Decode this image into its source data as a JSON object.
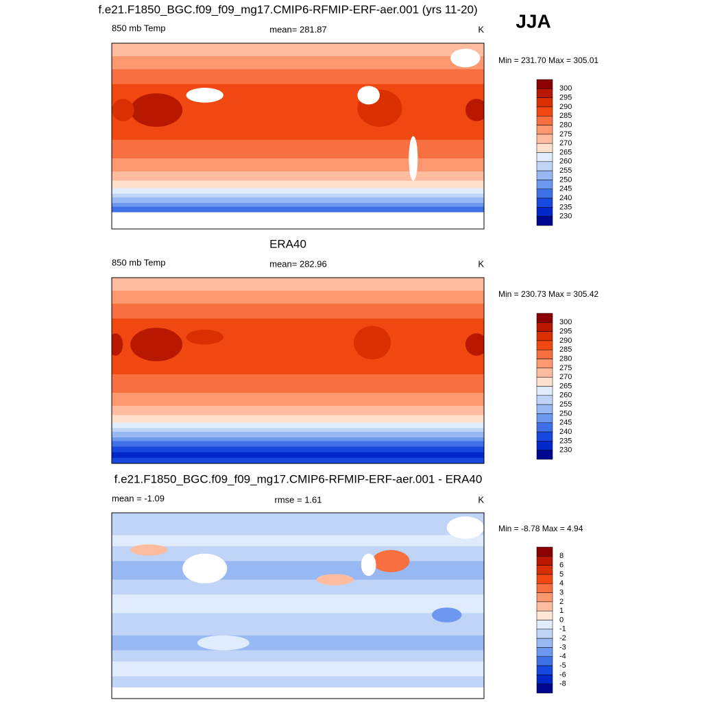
{
  "header": {
    "season": "JJA"
  },
  "panels": [
    {
      "title": "f.e21.F1850_BGC.f09_f09_mg17.CMIP6-RFMIP-ERF-aer.001 (yrs 11-20)",
      "left": "850 mb Temp",
      "center": "mean= 281.87",
      "right": "K",
      "minmax": "Min = 231.70 Max = 305.01",
      "colorbar": {
        "levels": [
          300,
          295,
          290,
          285,
          280,
          275,
          270,
          265,
          260,
          255,
          250,
          245,
          240,
          235,
          230
        ],
        "colors": [
          "#8b0000",
          "#b81800",
          "#d83000",
          "#f04810",
          "#f87040",
          "#fc9870",
          "#fdbca0",
          "#fee0cc",
          "#e0ecfc",
          "#c0d4f8",
          "#98b8f4",
          "#6c98f0",
          "#4070e8",
          "#1848e0",
          "#0028c8",
          "#000890"
        ]
      }
    },
    {
      "title": "ERA40",
      "left": "850 mb Temp",
      "center": "mean= 282.96",
      "right": "K",
      "minmax": "Min = 230.73 Max = 305.42",
      "colorbar": {
        "levels": [
          300,
          295,
          290,
          285,
          280,
          275,
          270,
          265,
          260,
          255,
          250,
          245,
          240,
          235,
          230
        ],
        "colors": [
          "#8b0000",
          "#b81800",
          "#d83000",
          "#f04810",
          "#f87040",
          "#fc9870",
          "#fdbca0",
          "#fee0cc",
          "#e0ecfc",
          "#c0d4f8",
          "#98b8f4",
          "#6c98f0",
          "#4070e8",
          "#1848e0",
          "#0028c8",
          "#000890"
        ]
      }
    },
    {
      "title": "f.e21.F1850_BGC.f09_f09_mg17.CMIP6-RFMIP-ERF-aer.001 - ERA40",
      "left": "mean =  -1.09",
      "center": "rmse =   1.61",
      "right": "K",
      "minmax": "Min =  -8.78 Max =   4.94",
      "colorbar": {
        "levels": [
          8,
          6,
          5,
          4,
          3,
          2,
          1,
          0,
          -1,
          -2,
          -3,
          -4,
          -5,
          -6,
          -8
        ],
        "colors": [
          "#8b0000",
          "#b81800",
          "#d83000",
          "#f04810",
          "#f87040",
          "#fc9870",
          "#fdbca0",
          "#fee8d4",
          "#e0ecfc",
          "#c0d4f8",
          "#98b8f4",
          "#6c98f0",
          "#4070e8",
          "#1848e0",
          "#0028c8",
          "#000890"
        ]
      }
    }
  ]
}
